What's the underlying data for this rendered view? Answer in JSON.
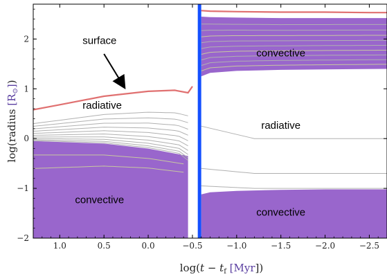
{
  "chart_data": {
    "type": "area",
    "xlabel_parts": [
      "log(",
      "t",
      " − ",
      "t",
      "f",
      " [Myr",
      "])"
    ],
    "ylabel_parts": [
      "log(radius ",
      "[R",
      "⊙",
      "]",
      ")"
    ],
    "xlim": [
      1.3,
      -2.7
    ],
    "ylim": [
      -2.0,
      2.7
    ],
    "x_reversed": true,
    "x_ticks": [
      1.0,
      0.5,
      0.0,
      -0.5,
      -1.0,
      -1.5,
      -2.0,
      -2.5
    ],
    "x_tick_labels": [
      "1.0",
      "0.5",
      "0.0",
      "−0.5",
      "−1.0",
      "−1.5",
      "−2.0",
      "−2.5"
    ],
    "y_ticks": [
      2,
      1,
      0,
      -1,
      -2
    ],
    "y_tick_labels": [
      "2",
      "1",
      "0",
      "−1",
      "−2"
    ],
    "grid": false,
    "colors": {
      "convective": "#9966cc",
      "surface": "#e07070",
      "boundary": "#1450ff",
      "radius_shells": "#b0b0b0",
      "inner_shells": "#c8c8a0",
      "label_accent": "#5a3ea0"
    },
    "vertical_line_x": -0.58,
    "surface_pre": {
      "x": [
        1.3,
        1.0,
        0.5,
        0.0,
        -0.3,
        -0.45,
        -0.5
      ],
      "y": [
        0.58,
        0.68,
        0.85,
        0.95,
        0.97,
        0.92,
        1.05
      ]
    },
    "surface_post": {
      "x": [
        -0.6,
        -0.7,
        -1.0,
        -1.5,
        -2.0,
        -2.5,
        -2.7
      ],
      "y": [
        2.57,
        2.56,
        2.55,
        2.54,
        2.54,
        2.53,
        2.53
      ]
    },
    "convective_regions": [
      {
        "name": "lower-left",
        "x": [
          1.3,
          0.5,
          0.0,
          -0.3,
          -0.45
        ],
        "top": [
          -0.05,
          -0.1,
          -0.2,
          -0.3,
          -0.35
        ],
        "bottom": -2.0
      },
      {
        "name": "upper-right",
        "x": [
          -0.6,
          -0.7,
          -1.0,
          -1.5,
          -2.0,
          -2.7
        ],
        "top": [
          2.45,
          2.44,
          2.43,
          2.42,
          2.42,
          2.42
        ],
        "bottom_vals": [
          1.25,
          1.32,
          1.36,
          1.38,
          1.39,
          1.4
        ]
      },
      {
        "name": "lower-right",
        "x": [
          -0.6,
          -0.7,
          -1.0,
          -1.5,
          -2.0,
          -2.7
        ],
        "top": [
          -1.12,
          -1.08,
          -1.05,
          -1.03,
          -1.02,
          -1.02
        ],
        "bottom": -2.0
      }
    ],
    "annotations": [
      {
        "text": "surface",
        "at_x": 0.55,
        "at_y": 1.9
      },
      {
        "text": "radiative",
        "at_x": 0.52,
        "at_y": 0.6
      },
      {
        "text": "convective",
        "at_x": 0.55,
        "at_y": -1.3
      },
      {
        "text": "convective",
        "at_x": -1.5,
        "at_y": 1.65
      },
      {
        "text": "radiative",
        "at_x": -1.5,
        "at_y": 0.2
      },
      {
        "text": "convective",
        "at_x": -1.5,
        "at_y": -1.55
      }
    ],
    "arrow": {
      "from_x": 0.5,
      "from_y": 1.7,
      "to_x": 0.28,
      "to_y": 1.06
    }
  }
}
